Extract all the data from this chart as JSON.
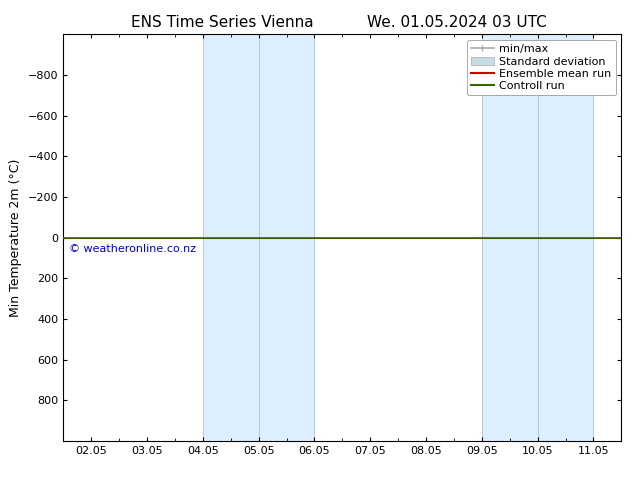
{
  "title_left": "ENS Time Series Vienna",
  "title_right": "We. 01.05.2024 03 UTC",
  "ylabel": "Min Temperature 2m (°C)",
  "xlim_start": -0.5,
  "xlim_end": 9.5,
  "ylim_top": -1000,
  "ylim_bottom": 1000,
  "yticks": [
    -800,
    -600,
    -400,
    -200,
    0,
    200,
    400,
    600,
    800
  ],
  "xtick_labels": [
    "02.05",
    "03.05",
    "04.05",
    "05.05",
    "06.05",
    "07.05",
    "08.05",
    "09.05",
    "10.05",
    "11.05"
  ],
  "xtick_positions": [
    0,
    1,
    2,
    3,
    4,
    5,
    6,
    7,
    8,
    9
  ],
  "background_color": "#ffffff",
  "plot_bg_color": "#ffffff",
  "shade_regions": [
    {
      "x_start": 2.0,
      "x_end": 4.0,
      "color": "#ddeeff"
    },
    {
      "x_start": 7.0,
      "x_end": 9.0,
      "color": "#ddeeff"
    }
  ],
  "vertical_lines": [
    {
      "x": 2.0,
      "color": "#b0ccdd",
      "lw": 0.7
    },
    {
      "x": 3.0,
      "color": "#b0ccdd",
      "lw": 0.7
    },
    {
      "x": 4.0,
      "color": "#b0ccdd",
      "lw": 0.7
    },
    {
      "x": 7.0,
      "color": "#b0ccdd",
      "lw": 0.7
    },
    {
      "x": 8.0,
      "color": "#b0ccdd",
      "lw": 0.7
    },
    {
      "x": 9.0,
      "color": "#b0ccdd",
      "lw": 0.7
    }
  ],
  "horizontal_line_y": 0,
  "horizontal_line_color": "#336600",
  "horizontal_line_lw": 1.2,
  "ensemble_mean_color": "#cc0000",
  "watermark": "© weatheronline.co.nz",
  "watermark_color": "#0000cc",
  "legend_items": [
    {
      "label": "min/max",
      "color": "#aaaaaa",
      "type": "errbar"
    },
    {
      "label": "Standard deviation",
      "color": "#c8dce8",
      "type": "box"
    },
    {
      "label": "Ensemble mean run",
      "color": "#cc0000",
      "type": "line"
    },
    {
      "label": "Controll run",
      "color": "#336600",
      "type": "line"
    }
  ],
  "title_fontsize": 11,
  "tick_fontsize": 8,
  "ylabel_fontsize": 9,
  "legend_fontsize": 8
}
